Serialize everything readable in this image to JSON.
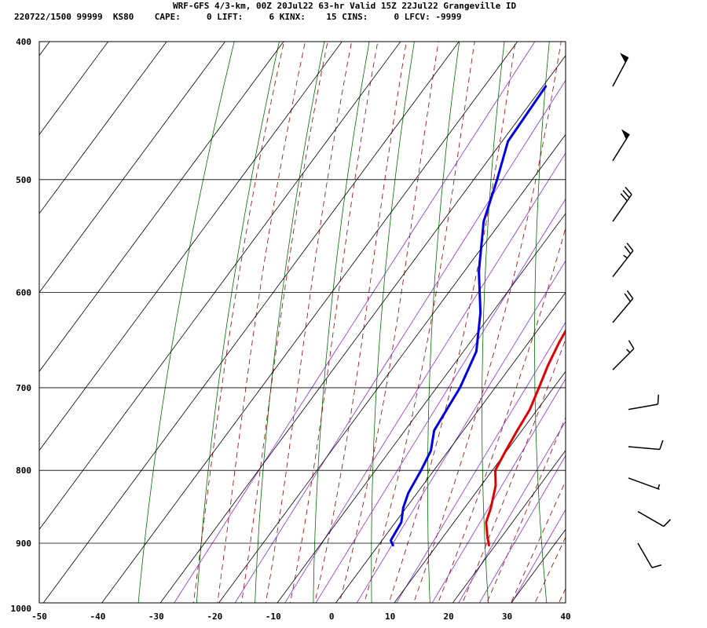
{
  "header": {
    "line1": "WRF-GFS 4/3-km, 00Z 20Jul22 63-hr Valid 15Z 22Jul22 Grangeville ID",
    "line2": "220722/1500 99999  KS80    CAPE:     0 LIFT:     6 KINX:    15 CINS:     0 LFCV: -9999"
  },
  "chart_data": {
    "type": "line",
    "title": "WRF-GFS 4/3-km, 00Z 20Jul22 63-hr Valid 15Z 22Jul22 Grangeville ID",
    "xlabel": "",
    "ylabel": "",
    "xlim": [
      -50,
      40
    ],
    "ylim_pressure": [
      1040,
      400
    ],
    "x_ticks": [
      -50,
      -40,
      -30,
      -20,
      -10,
      0,
      10,
      20,
      30,
      40
    ],
    "x_tick_labels": [
      "-50",
      "-40",
      "-30",
      "-20",
      "-10",
      "0",
      "10",
      "20",
      "30",
      "40"
    ],
    "y_ticks": [
      400,
      500,
      600,
      700,
      800,
      900,
      1000
    ],
    "y_tick_labels": [
      "400",
      "500",
      "600",
      "700",
      "800",
      "900",
      "1000"
    ],
    "y_scale": "log",
    "grid": true,
    "series": [
      {
        "color": "#e00000",
        "points": [
          [
            18.9,
            903
          ],
          [
            17.5,
            890
          ],
          [
            15.5,
            870
          ],
          [
            14.5,
            850
          ],
          [
            12.5,
            820
          ],
          [
            10.5,
            800
          ],
          [
            9.8,
            775
          ],
          [
            9.2,
            750
          ],
          [
            8.7,
            725
          ],
          [
            7.5,
            700
          ],
          [
            6.2,
            675
          ],
          [
            5.2,
            650
          ],
          [
            4.5,
            625
          ],
          [
            4.0,
            600
          ],
          [
            3.8,
            575
          ],
          [
            3.5,
            550
          ],
          [
            2.8,
            525
          ],
          [
            2.0,
            500
          ],
          [
            1.5,
            475
          ],
          [
            0.8,
            450
          ],
          [
            0.5,
            430
          ]
        ]
      },
      {
        "color": "#0000e0",
        "points": [
          [
            2.5,
            903
          ],
          [
            1.5,
            896
          ],
          [
            1.0,
            870
          ],
          [
            -0.5,
            850
          ],
          [
            -1.5,
            830
          ],
          [
            -2.2,
            800
          ],
          [
            -3.0,
            775
          ],
          [
            -5.0,
            750
          ],
          [
            -5.5,
            725
          ],
          [
            -6.0,
            700
          ],
          [
            -7.8,
            660
          ],
          [
            -12.0,
            620
          ],
          [
            -17.5,
            580
          ],
          [
            -23.0,
            535
          ],
          [
            -26.0,
            500
          ],
          [
            -29.0,
            470
          ],
          [
            -29.5,
            430
          ]
        ]
      }
    ],
    "background_lines": {
      "isotherm_color": "#000000",
      "dry_adiabat_color": "#007000",
      "moist_adiabat_color": "#a00000",
      "mixing_ratio_color": "#8a2be2"
    },
    "wind_barbs_pressure": [
      430,
      485,
      535,
      585,
      630,
      680,
      725,
      770,
      810,
      855,
      900
    ]
  }
}
